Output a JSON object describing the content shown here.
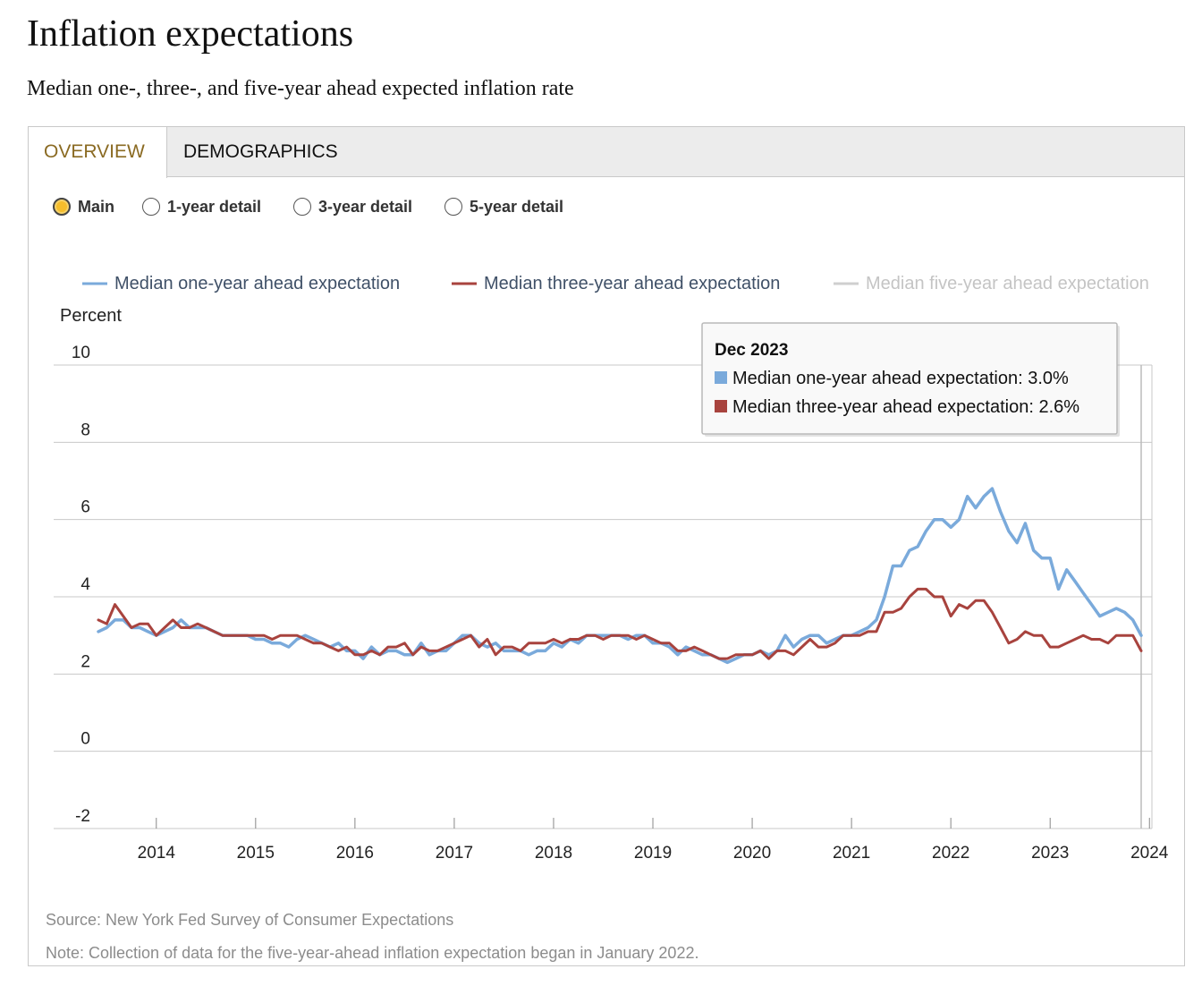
{
  "header": {
    "title": "Inflation expectations",
    "subtitle": "Median one-, three-, and five-year ahead expected inflation rate"
  },
  "tabs": [
    {
      "label": "OVERVIEW",
      "active": true
    },
    {
      "label": "DEMOGRAPHICS",
      "active": false
    }
  ],
  "radio_options": [
    {
      "label": "Main",
      "selected": true
    },
    {
      "label": "1-year detail",
      "selected": false
    },
    {
      "label": "3-year detail",
      "selected": false
    },
    {
      "label": "5-year detail",
      "selected": false
    }
  ],
  "colors": {
    "one_year": "#7aaadb",
    "three_year": "#a8433e",
    "five_year_disabled": "#cfcfcf",
    "active_tab": "#8a6a22",
    "radio_selected": "#f5bd2c",
    "grid": "#c8c8c8"
  },
  "chart_data": {
    "type": "line",
    "ylabel": "Percent",
    "ylim": [
      -2,
      10
    ],
    "yticks": [
      10,
      8,
      6,
      4,
      2,
      0,
      -2
    ],
    "xticks": [
      "2014",
      "2015",
      "2016",
      "2017",
      "2018",
      "2019",
      "2020",
      "2021",
      "2022",
      "2023",
      "2024"
    ],
    "x_range": [
      "2013-06",
      "2023-12"
    ],
    "grid": true,
    "legend_position": "top",
    "series": [
      {
        "name": "Median one-year ahead expectation",
        "visible": true,
        "points": [
          [
            "2013-06",
            3.1
          ],
          [
            "2013-07",
            3.2
          ],
          [
            "2013-08",
            3.4
          ],
          [
            "2013-09",
            3.4
          ],
          [
            "2013-10",
            3.2
          ],
          [
            "2013-11",
            3.2
          ],
          [
            "2013-12",
            3.1
          ],
          [
            "2014-01",
            3.0
          ],
          [
            "2014-02",
            3.1
          ],
          [
            "2014-03",
            3.2
          ],
          [
            "2014-04",
            3.4
          ],
          [
            "2014-05",
            3.2
          ],
          [
            "2014-06",
            3.2
          ],
          [
            "2014-07",
            3.2
          ],
          [
            "2014-08",
            3.1
          ],
          [
            "2014-09",
            3.0
          ],
          [
            "2014-10",
            3.0
          ],
          [
            "2014-11",
            3.0
          ],
          [
            "2014-12",
            3.0
          ],
          [
            "2015-01",
            2.9
          ],
          [
            "2015-02",
            2.9
          ],
          [
            "2015-03",
            2.8
          ],
          [
            "2015-04",
            2.8
          ],
          [
            "2015-05",
            2.7
          ],
          [
            "2015-06",
            2.9
          ],
          [
            "2015-07",
            3.0
          ],
          [
            "2015-08",
            2.9
          ],
          [
            "2015-09",
            2.8
          ],
          [
            "2015-10",
            2.7
          ],
          [
            "2015-11",
            2.8
          ],
          [
            "2015-12",
            2.6
          ],
          [
            "2016-01",
            2.6
          ],
          [
            "2016-02",
            2.4
          ],
          [
            "2016-03",
            2.7
          ],
          [
            "2016-04",
            2.5
          ],
          [
            "2016-05",
            2.6
          ],
          [
            "2016-06",
            2.6
          ],
          [
            "2016-07",
            2.5
          ],
          [
            "2016-08",
            2.5
          ],
          [
            "2016-09",
            2.8
          ],
          [
            "2016-10",
            2.5
          ],
          [
            "2016-11",
            2.6
          ],
          [
            "2016-12",
            2.6
          ],
          [
            "2017-01",
            2.8
          ],
          [
            "2017-02",
            3.0
          ],
          [
            "2017-03",
            3.0
          ],
          [
            "2017-04",
            2.8
          ],
          [
            "2017-05",
            2.7
          ],
          [
            "2017-06",
            2.8
          ],
          [
            "2017-07",
            2.6
          ],
          [
            "2017-08",
            2.6
          ],
          [
            "2017-09",
            2.6
          ],
          [
            "2017-10",
            2.5
          ],
          [
            "2017-11",
            2.6
          ],
          [
            "2017-12",
            2.6
          ],
          [
            "2018-01",
            2.8
          ],
          [
            "2018-02",
            2.7
          ],
          [
            "2018-03",
            2.9
          ],
          [
            "2018-04",
            2.8
          ],
          [
            "2018-05",
            3.0
          ],
          [
            "2018-06",
            3.0
          ],
          [
            "2018-07",
            3.0
          ],
          [
            "2018-08",
            3.0
          ],
          [
            "2018-09",
            3.0
          ],
          [
            "2018-10",
            2.9
          ],
          [
            "2018-11",
            3.0
          ],
          [
            "2018-12",
            3.0
          ],
          [
            "2019-01",
            2.8
          ],
          [
            "2019-02",
            2.8
          ],
          [
            "2019-03",
            2.7
          ],
          [
            "2019-04",
            2.5
          ],
          [
            "2019-05",
            2.7
          ],
          [
            "2019-06",
            2.6
          ],
          [
            "2019-07",
            2.5
          ],
          [
            "2019-08",
            2.5
          ],
          [
            "2019-09",
            2.4
          ],
          [
            "2019-10",
            2.3
          ],
          [
            "2019-11",
            2.4
          ],
          [
            "2019-12",
            2.5
          ],
          [
            "2020-01",
            2.5
          ],
          [
            "2020-02",
            2.6
          ],
          [
            "2020-03",
            2.5
          ],
          [
            "2020-04",
            2.6
          ],
          [
            "2020-05",
            3.0
          ],
          [
            "2020-06",
            2.7
          ],
          [
            "2020-07",
            2.9
          ],
          [
            "2020-08",
            3.0
          ],
          [
            "2020-09",
            3.0
          ],
          [
            "2020-10",
            2.8
          ],
          [
            "2020-11",
            2.9
          ],
          [
            "2020-12",
            3.0
          ],
          [
            "2021-01",
            3.0
          ],
          [
            "2021-02",
            3.1
          ],
          [
            "2021-03",
            3.2
          ],
          [
            "2021-04",
            3.4
          ],
          [
            "2021-05",
            4.0
          ],
          [
            "2021-06",
            4.8
          ],
          [
            "2021-07",
            4.8
          ],
          [
            "2021-08",
            5.2
          ],
          [
            "2021-09",
            5.3
          ],
          [
            "2021-10",
            5.7
          ],
          [
            "2021-11",
            6.0
          ],
          [
            "2021-12",
            6.0
          ],
          [
            "2022-01",
            5.8
          ],
          [
            "2022-02",
            6.0
          ],
          [
            "2022-03",
            6.6
          ],
          [
            "2022-04",
            6.3
          ],
          [
            "2022-05",
            6.6
          ],
          [
            "2022-06",
            6.8
          ],
          [
            "2022-07",
            6.2
          ],
          [
            "2022-08",
            5.7
          ],
          [
            "2022-09",
            5.4
          ],
          [
            "2022-10",
            5.9
          ],
          [
            "2022-11",
            5.2
          ],
          [
            "2022-12",
            5.0
          ],
          [
            "2023-01",
            5.0
          ],
          [
            "2023-02",
            4.2
          ],
          [
            "2023-03",
            4.7
          ],
          [
            "2023-04",
            4.4
          ],
          [
            "2023-05",
            4.1
          ],
          [
            "2023-06",
            3.8
          ],
          [
            "2023-07",
            3.5
          ],
          [
            "2023-08",
            3.6
          ],
          [
            "2023-09",
            3.7
          ],
          [
            "2023-10",
            3.6
          ],
          [
            "2023-11",
            3.4
          ],
          [
            "2023-12",
            3.0
          ]
        ]
      },
      {
        "name": "Median three-year ahead expectation",
        "visible": true,
        "points": [
          [
            "2013-06",
            3.4
          ],
          [
            "2013-07",
            3.3
          ],
          [
            "2013-08",
            3.8
          ],
          [
            "2013-09",
            3.5
          ],
          [
            "2013-10",
            3.2
          ],
          [
            "2013-11",
            3.3
          ],
          [
            "2013-12",
            3.3
          ],
          [
            "2014-01",
            3.0
          ],
          [
            "2014-02",
            3.2
          ],
          [
            "2014-03",
            3.4
          ],
          [
            "2014-04",
            3.2
          ],
          [
            "2014-05",
            3.2
          ],
          [
            "2014-06",
            3.3
          ],
          [
            "2014-07",
            3.2
          ],
          [
            "2014-08",
            3.1
          ],
          [
            "2014-09",
            3.0
          ],
          [
            "2014-10",
            3.0
          ],
          [
            "2014-11",
            3.0
          ],
          [
            "2014-12",
            3.0
          ],
          [
            "2015-01",
            3.0
          ],
          [
            "2015-02",
            3.0
          ],
          [
            "2015-03",
            2.9
          ],
          [
            "2015-04",
            3.0
          ],
          [
            "2015-05",
            3.0
          ],
          [
            "2015-06",
            3.0
          ],
          [
            "2015-07",
            2.9
          ],
          [
            "2015-08",
            2.8
          ],
          [
            "2015-09",
            2.8
          ],
          [
            "2015-10",
            2.7
          ],
          [
            "2015-11",
            2.6
          ],
          [
            "2015-12",
            2.7
          ],
          [
            "2016-01",
            2.5
          ],
          [
            "2016-02",
            2.5
          ],
          [
            "2016-03",
            2.6
          ],
          [
            "2016-04",
            2.5
          ],
          [
            "2016-05",
            2.7
          ],
          [
            "2016-06",
            2.7
          ],
          [
            "2016-07",
            2.8
          ],
          [
            "2016-08",
            2.5
          ],
          [
            "2016-09",
            2.7
          ],
          [
            "2016-10",
            2.6
          ],
          [
            "2016-11",
            2.6
          ],
          [
            "2016-12",
            2.7
          ],
          [
            "2017-01",
            2.8
          ],
          [
            "2017-02",
            2.9
          ],
          [
            "2017-03",
            3.0
          ],
          [
            "2017-04",
            2.7
          ],
          [
            "2017-05",
            2.9
          ],
          [
            "2017-06",
            2.5
          ],
          [
            "2017-07",
            2.7
          ],
          [
            "2017-08",
            2.7
          ],
          [
            "2017-09",
            2.6
          ],
          [
            "2017-10",
            2.8
          ],
          [
            "2017-11",
            2.8
          ],
          [
            "2017-12",
            2.8
          ],
          [
            "2018-01",
            2.9
          ],
          [
            "2018-02",
            2.8
          ],
          [
            "2018-03",
            2.9
          ],
          [
            "2018-04",
            2.9
          ],
          [
            "2018-05",
            3.0
          ],
          [
            "2018-06",
            3.0
          ],
          [
            "2018-07",
            2.9
          ],
          [
            "2018-08",
            3.0
          ],
          [
            "2018-09",
            3.0
          ],
          [
            "2018-10",
            3.0
          ],
          [
            "2018-11",
            2.9
          ],
          [
            "2018-12",
            3.0
          ],
          [
            "2019-01",
            2.9
          ],
          [
            "2019-02",
            2.8
          ],
          [
            "2019-03",
            2.8
          ],
          [
            "2019-04",
            2.6
          ],
          [
            "2019-05",
            2.6
          ],
          [
            "2019-06",
            2.7
          ],
          [
            "2019-07",
            2.6
          ],
          [
            "2019-08",
            2.5
          ],
          [
            "2019-09",
            2.4
          ],
          [
            "2019-10",
            2.4
          ],
          [
            "2019-11",
            2.5
          ],
          [
            "2019-12",
            2.5
          ],
          [
            "2020-01",
            2.5
          ],
          [
            "2020-02",
            2.6
          ],
          [
            "2020-03",
            2.4
          ],
          [
            "2020-04",
            2.6
          ],
          [
            "2020-05",
            2.6
          ],
          [
            "2020-06",
            2.5
          ],
          [
            "2020-07",
            2.7
          ],
          [
            "2020-08",
            2.9
          ],
          [
            "2020-09",
            2.7
          ],
          [
            "2020-10",
            2.7
          ],
          [
            "2020-11",
            2.8
          ],
          [
            "2020-12",
            3.0
          ],
          [
            "2021-01",
            3.0
          ],
          [
            "2021-02",
            3.0
          ],
          [
            "2021-03",
            3.1
          ],
          [
            "2021-04",
            3.1
          ],
          [
            "2021-05",
            3.6
          ],
          [
            "2021-06",
            3.6
          ],
          [
            "2021-07",
            3.7
          ],
          [
            "2021-08",
            4.0
          ],
          [
            "2021-09",
            4.2
          ],
          [
            "2021-10",
            4.2
          ],
          [
            "2021-11",
            4.0
          ],
          [
            "2021-12",
            4.0
          ],
          [
            "2022-01",
            3.5
          ],
          [
            "2022-02",
            3.8
          ],
          [
            "2022-03",
            3.7
          ],
          [
            "2022-04",
            3.9
          ],
          [
            "2022-05",
            3.9
          ],
          [
            "2022-06",
            3.6
          ],
          [
            "2022-07",
            3.2
          ],
          [
            "2022-08",
            2.8
          ],
          [
            "2022-09",
            2.9
          ],
          [
            "2022-10",
            3.1
          ],
          [
            "2022-11",
            3.0
          ],
          [
            "2022-12",
            3.0
          ],
          [
            "2023-01",
            2.7
          ],
          [
            "2023-02",
            2.7
          ],
          [
            "2023-03",
            2.8
          ],
          [
            "2023-04",
            2.9
          ],
          [
            "2023-05",
            3.0
          ],
          [
            "2023-06",
            2.9
          ],
          [
            "2023-07",
            2.9
          ],
          [
            "2023-08",
            2.8
          ],
          [
            "2023-09",
            3.0
          ],
          [
            "2023-10",
            3.0
          ],
          [
            "2023-11",
            3.0
          ],
          [
            "2023-12",
            2.6
          ]
        ]
      },
      {
        "name": "Median five-year ahead expectation",
        "visible": false,
        "points": []
      }
    ]
  },
  "tooltip": {
    "title": "Dec 2023",
    "rows": [
      {
        "text": "Median one-year ahead expectation: 3.0%",
        "color": "#7aaadb"
      },
      {
        "text": "Median three-year ahead expectation: 2.6%",
        "color": "#a8433e"
      }
    ]
  },
  "footer": {
    "source": "Source: New York Fed Survey of Consumer Expectations",
    "note": "Note: Collection of data for the five-year-ahead inflation expectation began in January 2022."
  }
}
